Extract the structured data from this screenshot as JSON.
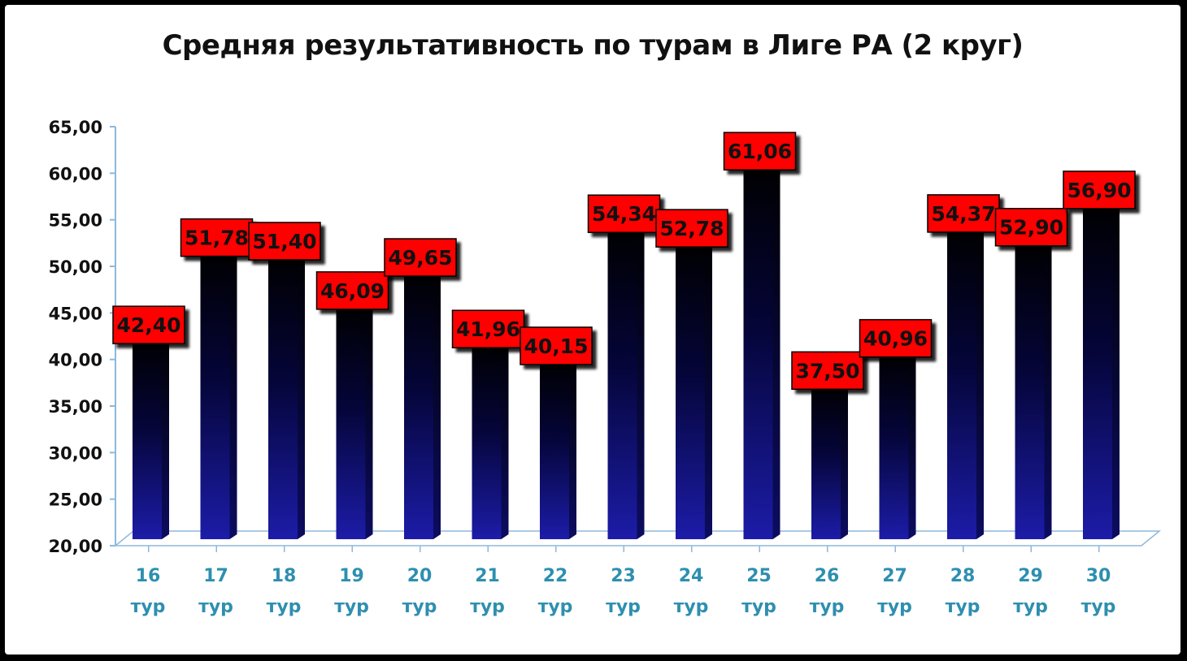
{
  "chart_data": {
    "type": "bar",
    "title": "Средняя результативность по турам в Лиге РА (2 круг)",
    "categories": [
      [
        "16",
        "тур"
      ],
      [
        "17",
        "тур"
      ],
      [
        "18",
        "тур"
      ],
      [
        "19",
        "тур"
      ],
      [
        "20",
        "тур"
      ],
      [
        "21",
        "тур"
      ],
      [
        "22",
        "тур"
      ],
      [
        "23",
        "тур"
      ],
      [
        "24",
        "тур"
      ],
      [
        "25",
        "тур"
      ],
      [
        "26",
        "тур"
      ],
      [
        "27",
        "тур"
      ],
      [
        "28",
        "тур"
      ],
      [
        "29",
        "тур"
      ],
      [
        "30",
        "тур"
      ]
    ],
    "values": [
      42.4,
      51.78,
      51.4,
      46.09,
      49.65,
      41.96,
      40.15,
      54.34,
      52.78,
      61.06,
      37.5,
      40.96,
      54.37,
      52.9,
      56.9
    ],
    "value_labels": [
      "42,40",
      "51,78",
      "51,40",
      "46,09",
      "49,65",
      "41,96",
      "40,15",
      "54,34",
      "52,78",
      "61,06",
      "37,50",
      "40,96",
      "54,37",
      "52,90",
      "56,90"
    ],
    "yticks": [
      "20,00",
      "25,00",
      "30,00",
      "35,00",
      "40,00",
      "45,00",
      "50,00",
      "55,00",
      "60,00",
      "65,00"
    ],
    "ylim": [
      20,
      65
    ],
    "xlabel": "",
    "ylabel": "",
    "grid": false,
    "legend": "none",
    "colors": {
      "bar_top": "#000000",
      "bar_bottom": "#1a1aa0",
      "bar_side": "#0a0a50",
      "label_bg": "#ff0000",
      "axis": "#8fb8d8",
      "xtick_text": "#2e8fb0"
    }
  }
}
